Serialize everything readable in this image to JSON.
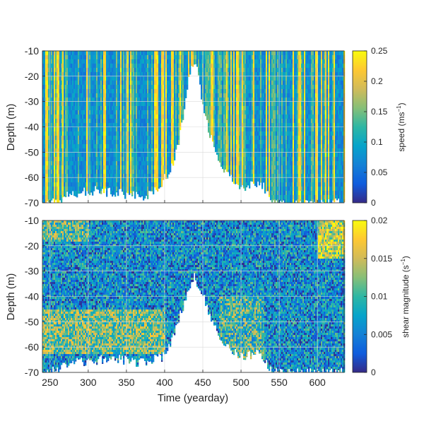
{
  "chart_data": [
    {
      "type": "heatmap",
      "title": "",
      "xlabel": "",
      "ylabel": "Depth (m)",
      "xlim": [
        240,
        635
      ],
      "ylim": [
        -70,
        -10
      ],
      "xticks": [
        250,
        300,
        350,
        400,
        450,
        500,
        550,
        600
      ],
      "xtick_labels_visible": false,
      "yticks": [
        -10,
        -20,
        -30,
        -40,
        -50,
        -60,
        -70
      ],
      "grid": true,
      "colorbar": {
        "label": "speed (ms",
        "label_sup": "−1",
        "label_close": ")",
        "min": 0,
        "max": 0.25,
        "ticks": [
          0,
          0.05,
          0.1,
          0.15,
          0.2,
          0.25
        ],
        "tick_labels": [
          "0",
          "0.05",
          "0.1",
          "0.15",
          "0.2",
          "0.25"
        ]
      },
      "value_max": 0.25,
      "data_bottom_profile": [
        [
          240,
          -70
        ],
        [
          260,
          -70
        ],
        [
          272,
          -67
        ],
        [
          300,
          -65
        ],
        [
          330,
          -66
        ],
        [
          360,
          -67
        ],
        [
          380,
          -67
        ],
        [
          395,
          -62
        ],
        [
          405,
          -58
        ],
        [
          412,
          -52
        ],
        [
          418,
          -45
        ],
        [
          424,
          -35
        ],
        [
          430,
          -22
        ],
        [
          435,
          -14
        ],
        [
          440,
          -15
        ],
        [
          446,
          -26
        ],
        [
          452,
          -36
        ],
        [
          460,
          -45
        ],
        [
          470,
          -52
        ],
        [
          480,
          -58
        ],
        [
          490,
          -62
        ],
        [
          505,
          -64
        ],
        [
          520,
          -62
        ],
        [
          530,
          -64
        ],
        [
          538,
          -70
        ],
        [
          635,
          -70
        ]
      ],
      "notes": "Per-column speed values (m/s) shown as a heatmap; columns end at the data_bottom_profile depth."
    },
    {
      "type": "heatmap",
      "title": "",
      "xlabel": "Time (yearday)",
      "ylabel": "Depth (m)",
      "xlim": [
        240,
        635
      ],
      "ylim": [
        -70,
        -10
      ],
      "xticks": [
        250,
        300,
        350,
        400,
        450,
        500,
        550,
        600
      ],
      "xtick_labels": [
        "250",
        "300",
        "350",
        "400",
        "450",
        "500",
        "550",
        "600"
      ],
      "yticks": [
        -10,
        -20,
        -30,
        -40,
        -50,
        -60,
        -70
      ],
      "grid": true,
      "colorbar": {
        "label": "shear magnitude (s",
        "label_sup": "−1",
        "label_close": ")",
        "min": 0,
        "max": 0.02,
        "ticks": [
          0,
          0.005,
          0.01,
          0.015,
          0.02
        ],
        "tick_labels": [
          "0",
          "0.005",
          "0.01",
          "0.015",
          "0.02"
        ]
      },
      "value_max": 0.02,
      "data_bottom_profile": [
        [
          240,
          -70
        ],
        [
          260,
          -69
        ],
        [
          280,
          -66
        ],
        [
          310,
          -65
        ],
        [
          340,
          -65
        ],
        [
          370,
          -66
        ],
        [
          395,
          -64
        ],
        [
          405,
          -60
        ],
        [
          414,
          -52
        ],
        [
          422,
          -45
        ],
        [
          430,
          -38
        ],
        [
          437,
          -32
        ],
        [
          445,
          -36
        ],
        [
          455,
          -44
        ],
        [
          465,
          -52
        ],
        [
          480,
          -60
        ],
        [
          500,
          -64
        ],
        [
          520,
          -62
        ],
        [
          530,
          -65
        ],
        [
          540,
          -70
        ],
        [
          635,
          -70
        ]
      ],
      "notes": "Per-column shear magnitude (1/s) shown as a heatmap; columns end at the data_bottom_profile depth."
    }
  ]
}
